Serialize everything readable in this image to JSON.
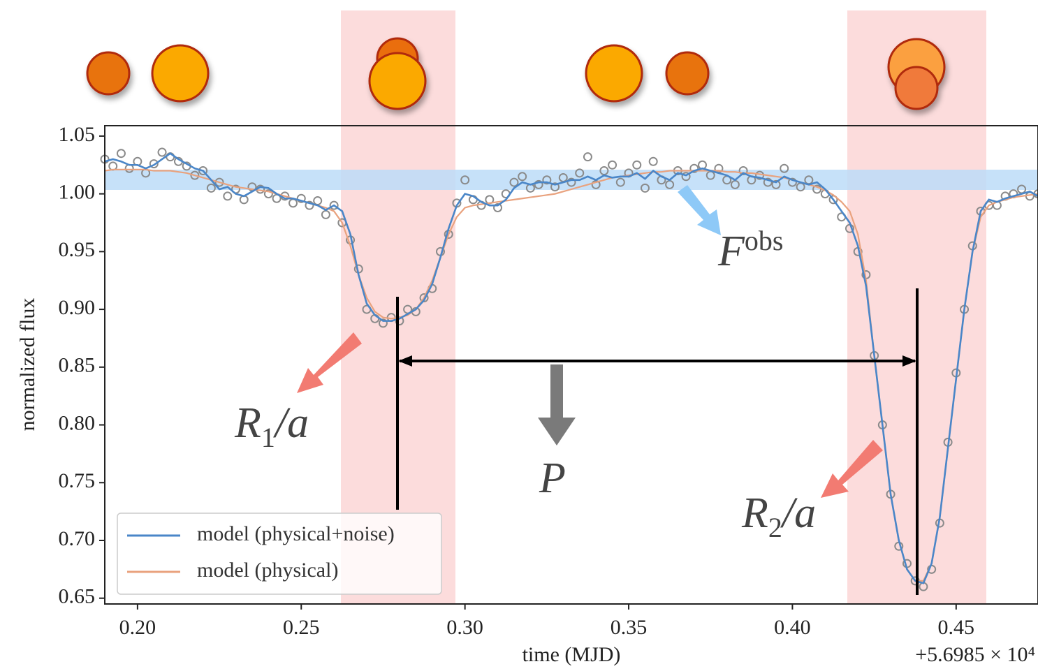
{
  "chart_data": {
    "type": "line",
    "x_label": "time (MJD)",
    "y_label": "normalized flux",
    "x_offset_label": "+5.6985 × 10⁴",
    "xlim": [
      0.19,
      0.475
    ],
    "ylim": [
      0.645,
      1.059
    ],
    "xticks": [
      {
        "value": 0.2,
        "label": "0.20"
      },
      0.25,
      {
        "value": 0.3,
        "label": "0.30"
      },
      0.35,
      {
        "value": 0.4,
        "label": "0.40"
      },
      0.45
    ],
    "yticks": [
      0.65,
      {
        "value": 0.7,
        "label": "0.70"
      },
      0.75,
      {
        "value": 0.8,
        "label": "0.80"
      },
      0.85,
      {
        "value": 0.9,
        "label": "0.90"
      },
      0.95,
      {
        "value": 1.0,
        "label": "1.00"
      },
      1.05
    ],
    "legend": "lower left",
    "annotations": [
      {
        "text": "F",
        "sup": "obs"
      },
      {
        "text": "R",
        "sub": "1",
        "rest": "/a"
      },
      {
        "text": "R",
        "sub": "2",
        "rest": "/a"
      },
      {
        "text": "P"
      }
    ],
    "x": [
      0.19,
      0.1925,
      0.195,
      0.1975,
      0.2,
      0.2025,
      0.205,
      0.2075,
      0.21,
      0.2125,
      0.215,
      0.2175,
      0.22,
      0.2225,
      0.225,
      0.2275,
      0.23,
      0.2325,
      0.235,
      0.2375,
      0.24,
      0.2425,
      0.245,
      0.2475,
      0.25,
      0.2525,
      0.255,
      0.2575,
      0.26,
      0.2625,
      0.265,
      0.2675,
      0.27,
      0.2725,
      0.275,
      0.2775,
      0.28,
      0.2825,
      0.285,
      0.2875,
      0.29,
      0.2925,
      0.295,
      0.2975,
      0.3,
      0.3025,
      0.305,
      0.3075,
      0.31,
      0.3125,
      0.315,
      0.3175,
      0.32,
      0.3225,
      0.325,
      0.3275,
      0.33,
      0.3325,
      0.335,
      0.3375,
      0.34,
      0.3425,
      0.345,
      0.3475,
      0.35,
      0.3525,
      0.355,
      0.3575,
      0.36,
      0.3625,
      0.365,
      0.3675,
      0.37,
      0.3725,
      0.375,
      0.3775,
      0.38,
      0.3825,
      0.385,
      0.3875,
      0.39,
      0.3925,
      0.395,
      0.3975,
      0.4,
      0.4025,
      0.405,
      0.4075,
      0.41,
      0.4125,
      0.415,
      0.4175,
      0.42,
      0.4225,
      0.425,
      0.4275,
      0.43,
      0.4325,
      0.435,
      0.4375,
      0.44,
      0.4425,
      0.445,
      0.4475,
      0.45,
      0.4525,
      0.455,
      0.4575,
      0.46,
      0.4625,
      0.465,
      0.4675,
      0.47,
      0.4725,
      0.475
    ],
    "series": [
      {
        "style": "markers",
        "color": "#8a8a8a",
        "values": [
          1.03,
          1.024,
          1.035,
          1.022,
          1.028,
          1.018,
          1.026,
          1.036,
          1.032,
          1.028,
          1.024,
          1.016,
          1.02,
          1.005,
          1.01,
          0.998,
          1.004,
          0.995,
          1.006,
          1.004,
          1.0,
          0.996,
          0.998,
          0.992,
          0.996,
          0.99,
          0.994,
          0.982,
          0.99,
          0.975,
          0.96,
          0.935,
          0.9,
          0.892,
          0.888,
          0.893,
          0.89,
          0.9,
          0.898,
          0.91,
          0.918,
          0.95,
          0.965,
          0.992,
          1.012,
          0.995,
          0.99,
          0.995,
          0.988,
          1.0,
          1.01,
          1.015,
          1.005,
          1.008,
          1.012,
          1.006,
          1.014,
          1.01,
          1.018,
          1.032,
          1.008,
          1.02,
          1.025,
          1.01,
          1.018,
          1.025,
          1.005,
          1.028,
          1.012,
          1.008,
          1.02,
          1.015,
          1.022,
          1.025,
          1.016,
          1.022,
          1.012,
          1.008,
          1.02,
          1.012,
          1.016,
          1.01,
          1.008,
          1.022,
          1.01,
          1.006,
          1.012,
          1.004,
          1.0,
          0.995,
          0.98,
          0.97,
          0.95,
          0.93,
          0.86,
          0.8,
          0.74,
          0.695,
          0.68,
          0.665,
          0.66,
          0.675,
          0.715,
          0.785,
          0.845,
          0.9,
          0.955,
          0.985,
          0.99,
          0.99,
          0.998,
          1.0,
          1.004,
          0.998,
          1.0
        ]
      },
      {
        "name": "model (physical)",
        "style": "line",
        "color": "#e9a27e",
        "values": [
          1.02,
          1.021,
          1.021,
          1.021,
          1.021,
          1.021,
          1.02,
          1.02,
          1.02,
          1.019,
          1.018,
          1.016,
          1.014,
          1.012,
          1.01,
          1.008,
          1.006,
          1.005,
          1.004,
          1.003,
          1.002,
          1.0,
          0.998,
          0.996,
          0.994,
          0.992,
          0.99,
          0.988,
          0.985,
          0.975,
          0.955,
          0.93,
          0.91,
          0.898,
          0.893,
          0.892,
          0.893,
          0.895,
          0.9,
          0.91,
          0.925,
          0.945,
          0.965,
          0.98,
          0.988,
          0.99,
          0.991,
          0.992,
          0.993,
          0.994,
          0.995,
          0.996,
          0.997,
          0.998,
          0.999,
          1.0,
          1.002,
          1.004,
          1.006,
          1.008,
          1.01,
          1.012,
          1.014,
          1.015,
          1.016,
          1.017,
          1.018,
          1.019,
          1.019,
          1.02,
          1.02,
          1.02,
          1.02,
          1.02,
          1.02,
          1.02,
          1.019,
          1.019,
          1.018,
          1.018,
          1.017,
          1.016,
          1.015,
          1.014,
          1.012,
          1.01,
          1.008,
          1.006,
          1.003,
          0.999,
          0.993,
          0.985,
          0.965,
          0.925,
          0.86,
          0.8,
          0.74,
          0.7,
          0.675,
          0.665,
          0.665,
          0.68,
          0.72,
          0.78,
          0.84,
          0.9,
          0.95,
          0.98,
          0.99,
          0.993,
          0.995,
          0.997,
          0.998,
          0.999,
          1.0
        ]
      },
      {
        "name": "model (physical+noise)",
        "style": "line",
        "color": "#4a86c8",
        "values": [
          1.028,
          1.03,
          1.028,
          1.025,
          1.025,
          1.022,
          1.025,
          1.03,
          1.035,
          1.03,
          1.026,
          1.022,
          1.02,
          1.012,
          1.004,
          1.006,
          1.0,
          0.998,
          1.002,
          1.006,
          1.005,
          1.0,
          0.996,
          0.996,
          0.994,
          0.992,
          0.99,
          0.986,
          0.99,
          0.985,
          0.965,
          0.93,
          0.905,
          0.895,
          0.89,
          0.89,
          0.892,
          0.896,
          0.9,
          0.908,
          0.922,
          0.945,
          0.97,
          0.99,
          1.0,
          0.998,
          0.993,
          0.99,
          0.99,
          0.995,
          1.005,
          1.01,
          1.008,
          1.01,
          1.01,
          1.008,
          1.01,
          1.012,
          1.012,
          1.015,
          1.012,
          1.016,
          1.014,
          1.015,
          1.015,
          1.018,
          1.013,
          1.02,
          1.015,
          1.012,
          1.018,
          1.016,
          1.02,
          1.022,
          1.02,
          1.018,
          1.016,
          1.012,
          1.018,
          1.015,
          1.014,
          1.012,
          1.01,
          1.015,
          1.012,
          1.01,
          1.008,
          1.01,
          1.004,
          0.995,
          0.985,
          0.975,
          0.955,
          0.92,
          0.86,
          0.8,
          0.74,
          0.7,
          0.675,
          0.665,
          0.663,
          0.68,
          0.72,
          0.78,
          0.84,
          0.9,
          0.95,
          0.985,
          0.995,
          0.993,
          0.996,
          0.998,
          1.0,
          1.002,
          0.998
        ]
      }
    ]
  }
}
